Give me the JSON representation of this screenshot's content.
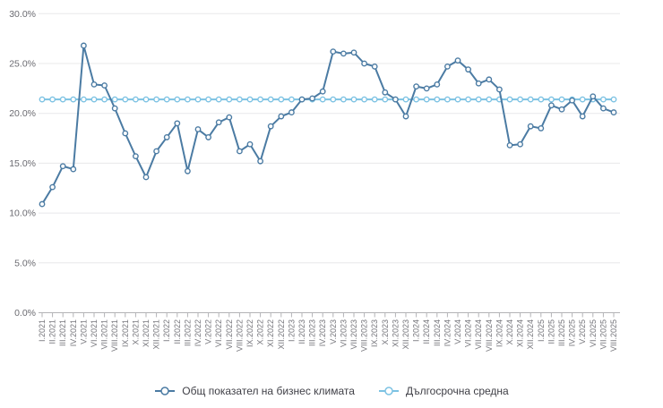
{
  "chart_data": {
    "type": "line",
    "title": "",
    "xlabel": "",
    "ylabel": "",
    "ylim": [
      0,
      30
    ],
    "ytick_step": 5,
    "grid": true,
    "legend_position": "bottom-center",
    "categories": [
      "I.2021",
      "II.2021",
      "III.2021",
      "IV.2021",
      "V.2021",
      "VI.2021",
      "VII.2021",
      "VIII.2021",
      "IX.2021",
      "X.2021",
      "XI.2021",
      "XII.2021",
      "I.2022",
      "II.2022",
      "III.2022",
      "IV.2022",
      "V.2022",
      "VI.2022",
      "VII.2022",
      "VIII.2022",
      "IX.2022",
      "X.2022",
      "XI.2022",
      "XII.2022",
      "I.2023",
      "II.2023",
      "III.2023",
      "IV.2023",
      "V.2023",
      "VI.2023",
      "VII.2023",
      "VIII.2023",
      "IX.2023",
      "X.2023",
      "XI.2023",
      "XII.2023",
      "I.2024",
      "II.2024",
      "III.2024",
      "IV.2024",
      "V.2024",
      "VI.2024",
      "VII.2024",
      "VIII.2024",
      "IX.2024",
      "X.2024",
      "XI.2024",
      "XII.2024",
      "I.2025",
      "II.2025",
      "III.2025",
      "IV.2025",
      "V.2025",
      "VI.2025",
      "VII.2025",
      "VIII.2025"
    ],
    "series": [
      {
        "name": "Общ показател на бизнес климата",
        "color": "#4b7ba3",
        "marker": "circle",
        "values": [
          10.9,
          12.6,
          14.7,
          14.4,
          26.8,
          22.9,
          22.8,
          20.5,
          18.0,
          15.7,
          13.6,
          16.2,
          17.6,
          19.0,
          14.2,
          18.4,
          17.6,
          19.1,
          19.6,
          16.2,
          16.9,
          15.2,
          18.7,
          19.7,
          20.1,
          21.4,
          21.5,
          22.2,
          26.2,
          26.0,
          26.1,
          25.0,
          24.7,
          22.1,
          21.4,
          19.7,
          22.7,
          22.5,
          22.9,
          24.7,
          25.3,
          24.4,
          23.0,
          23.4,
          22.4,
          16.8,
          16.9,
          18.7,
          18.5,
          20.8,
          20.4,
          21.3,
          19.7,
          21.7,
          20.5,
          20.1
        ]
      },
      {
        "name": "Дългосрочна средна",
        "color": "#7cc2e3",
        "marker": "circle",
        "constant_value": 21.4
      }
    ]
  },
  "axis": {
    "y_tick_labels": [
      "0.0%",
      "5.0%",
      "10.0%",
      "15.0%",
      "20.0%",
      "25.0%",
      "30.0%"
    ],
    "label_color": "#6a6a70",
    "grid_color": "#e8e8ea",
    "axis_color": "#b3b3b6"
  },
  "legend": {
    "items": [
      {
        "label": "Общ показател на бизнес климата"
      },
      {
        "label": "Дългосрочна средна"
      }
    ]
  }
}
